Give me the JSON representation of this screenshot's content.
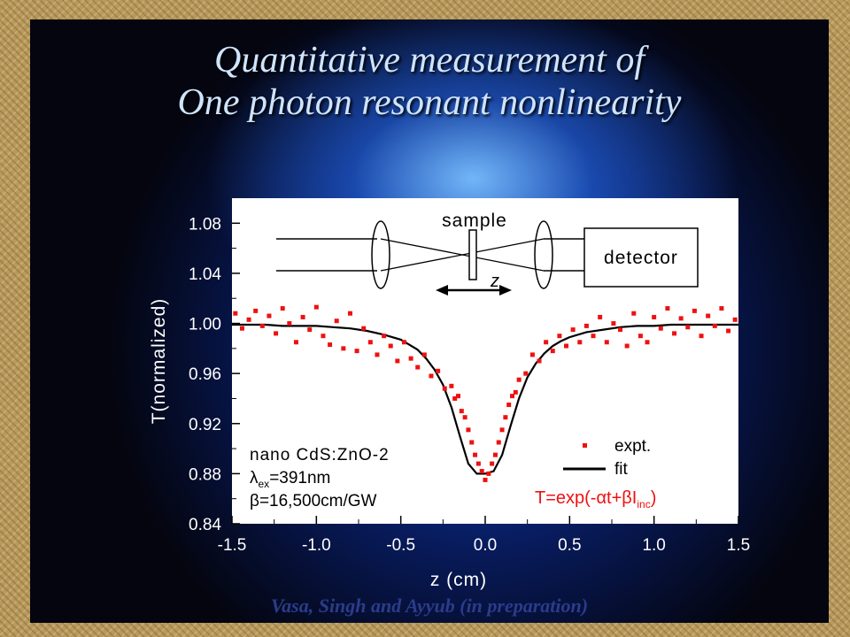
{
  "slide": {
    "title_line1": "Quantitative measurement of",
    "title_line2": "One photon resonant nonlinearity",
    "credit": "Vasa, Singh and Ayyub (in preparation)"
  },
  "colors": {
    "expt": "#ee1111",
    "fit": "#000000",
    "formula": "#ee1111",
    "title": "#cfe4ff",
    "credit": "#2b3c8c"
  },
  "schematic": {
    "sample_label": "sample",
    "detector_label": "detector",
    "z_label": "z"
  },
  "annotation": {
    "line1": "nano CdS:ZnO-2",
    "line2_symbol": "λ",
    "line2_sub": "ex",
    "line2_rest": "=391nm",
    "line3_symbol": "β",
    "line3_rest": "=16,500cm/GW"
  },
  "formula": {
    "prefix": "T=exp(-",
    "alpha": "α",
    "mid": "t+",
    "beta": "β",
    "I": "I",
    "sub": "inc",
    "suffix": ")"
  },
  "chart_data": {
    "type": "scatter",
    "xlabel": "z (cm)",
    "ylabel": "T(normalized)",
    "xlim": [
      -1.5,
      1.5
    ],
    "ylim": [
      0.84,
      1.1
    ],
    "xticks": [
      -1.5,
      -1.0,
      -0.5,
      0.0,
      0.5,
      1.0,
      1.5
    ],
    "xtick_labels": [
      "-1.5",
      "-1.0",
      "-0.5",
      "0.0",
      "0.5",
      "1.0",
      "1.5"
    ],
    "yticks": [
      0.84,
      0.88,
      0.92,
      0.96,
      1.0,
      1.04,
      1.08
    ],
    "ytick_labels": [
      "0.84",
      "0.88",
      "0.92",
      "0.96",
      "1.00",
      "1.04",
      "1.08"
    ],
    "legend_position": "bottom-right",
    "series": [
      {
        "name": "expt.",
        "style": "points",
        "x": [
          -1.48,
          -1.44,
          -1.4,
          -1.36,
          -1.32,
          -1.28,
          -1.24,
          -1.2,
          -1.16,
          -1.12,
          -1.08,
          -1.04,
          -1.0,
          -0.96,
          -0.92,
          -0.88,
          -0.84,
          -0.8,
          -0.76,
          -0.72,
          -0.68,
          -0.64,
          -0.6,
          -0.56,
          -0.52,
          -0.48,
          -0.44,
          -0.4,
          -0.36,
          -0.32,
          -0.28,
          -0.24,
          -0.2,
          -0.18,
          -0.16,
          -0.14,
          -0.12,
          -0.1,
          -0.08,
          -0.06,
          -0.04,
          -0.02,
          0.0,
          0.02,
          0.04,
          0.06,
          0.08,
          0.1,
          0.12,
          0.14,
          0.16,
          0.18,
          0.2,
          0.24,
          0.28,
          0.32,
          0.36,
          0.4,
          0.44,
          0.48,
          0.52,
          0.56,
          0.6,
          0.64,
          0.68,
          0.72,
          0.76,
          0.8,
          0.84,
          0.88,
          0.92,
          0.96,
          1.0,
          1.04,
          1.08,
          1.12,
          1.16,
          1.2,
          1.24,
          1.28,
          1.32,
          1.36,
          1.4,
          1.44,
          1.48
        ],
        "y": [
          1.008,
          0.996,
          1.003,
          1.01,
          0.998,
          1.006,
          0.992,
          1.012,
          1.0,
          0.985,
          1.005,
          0.995,
          1.013,
          0.99,
          0.983,
          1.002,
          0.98,
          1.008,
          0.978,
          0.996,
          0.985,
          0.975,
          0.99,
          0.982,
          0.97,
          0.985,
          0.972,
          0.965,
          0.975,
          0.958,
          0.962,
          0.948,
          0.95,
          0.94,
          0.942,
          0.93,
          0.925,
          0.915,
          0.905,
          0.895,
          0.888,
          0.882,
          0.875,
          0.88,
          0.888,
          0.895,
          0.905,
          0.915,
          0.925,
          0.935,
          0.942,
          0.945,
          0.955,
          0.96,
          0.975,
          0.97,
          0.985,
          0.978,
          0.99,
          0.982,
          0.995,
          0.985,
          0.998,
          0.99,
          1.005,
          0.985,
          1.0,
          0.995,
          0.982,
          1.008,
          0.99,
          0.985,
          1.005,
          0.996,
          1.012,
          0.992,
          1.004,
          0.997,
          1.01,
          0.99,
          1.006,
          0.998,
          1.012,
          0.994,
          1.003
        ]
      },
      {
        "name": "fit",
        "style": "line",
        "x": [
          -1.5,
          -1.4,
          -1.3,
          -1.2,
          -1.1,
          -1.0,
          -0.9,
          -0.8,
          -0.7,
          -0.6,
          -0.5,
          -0.45,
          -0.4,
          -0.35,
          -0.3,
          -0.25,
          -0.2,
          -0.15,
          -0.1,
          -0.05,
          0.0,
          0.05,
          0.1,
          0.15,
          0.2,
          0.25,
          0.3,
          0.35,
          0.4,
          0.45,
          0.5,
          0.6,
          0.7,
          0.8,
          0.9,
          1.0,
          1.1,
          1.2,
          1.3,
          1.4,
          1.5
        ],
        "y": [
          0.999,
          0.999,
          0.999,
          0.998,
          0.998,
          0.998,
          0.997,
          0.996,
          0.994,
          0.991,
          0.987,
          0.983,
          0.979,
          0.972,
          0.963,
          0.951,
          0.933,
          0.91,
          0.888,
          0.88,
          0.88,
          0.882,
          0.895,
          0.918,
          0.94,
          0.957,
          0.968,
          0.976,
          0.982,
          0.986,
          0.989,
          0.993,
          0.995,
          0.997,
          0.998,
          0.998,
          0.999,
          0.999,
          0.999,
          0.999,
          0.999
        ]
      }
    ]
  }
}
